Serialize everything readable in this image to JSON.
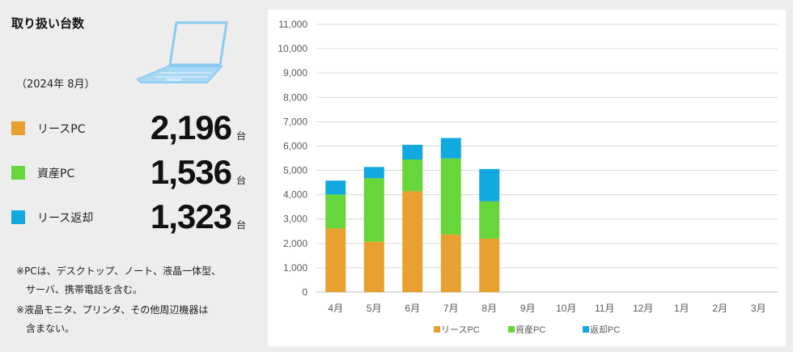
{
  "summary": {
    "title": "取り扱い台数",
    "period": "（2024年 8月）",
    "stats": [
      {
        "label": "リースPC",
        "value": "2,196",
        "unit": "台",
        "color": "#E8A030"
      },
      {
        "label": "資産PC",
        "value": "1,536",
        "unit": "台",
        "color": "#66D63A"
      },
      {
        "label": "リース返却",
        "value": "1,323",
        "unit": "台",
        "color": "#12A8E0"
      }
    ],
    "notes": [
      "※PCは、デスクトップ、ノート、液晶一体型、",
      "　サーバ、携帯電話を含む。",
      "※液晶モニタ、プリンタ、その他周辺機器は",
      "　含まない。"
    ],
    "icon": "laptop-icon"
  },
  "chart_data": {
    "type": "bar",
    "stacked": true,
    "categories": [
      "4月",
      "5月",
      "6月",
      "7月",
      "8月",
      "9月",
      "10月",
      "11月",
      "12月",
      "1月",
      "2月",
      "3月"
    ],
    "series": [
      {
        "name": "リースPC",
        "color": "#E8A030",
        "values": [
          2620,
          2070,
          4140,
          2370,
          2196,
          null,
          null,
          null,
          null,
          null,
          null,
          null
        ]
      },
      {
        "name": "資産PC",
        "color": "#66D63A",
        "values": [
          1390,
          2610,
          1310,
          3120,
          1536,
          null,
          null,
          null,
          null,
          null,
          null,
          null
        ]
      },
      {
        "name": "返却PC",
        "color": "#12A8E0",
        "values": [
          570,
          460,
          600,
          840,
          1323,
          null,
          null,
          null,
          null,
          null,
          null,
          null
        ]
      }
    ],
    "ylim": [
      0,
      11000
    ],
    "yticks": [
      "0",
      "1,000",
      "2,000",
      "3,000",
      "4,000",
      "5,000",
      "6,000",
      "7,000",
      "8,000",
      "9,000",
      "10,000",
      "11,000"
    ],
    "grid": true,
    "legend": "bottom"
  }
}
